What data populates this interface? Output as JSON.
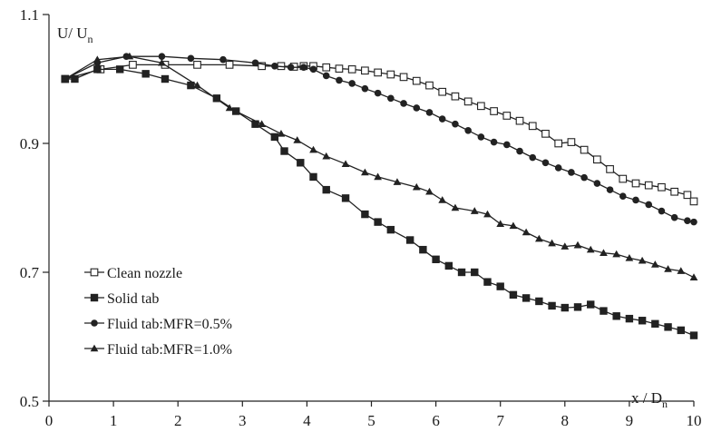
{
  "chart_data": {
    "type": "line",
    "xlim": [
      0,
      10
    ],
    "ylim": [
      0.5,
      1.1
    ],
    "x_ticks": [
      "0",
      "1",
      "2",
      "3",
      "4",
      "5",
      "6",
      "7",
      "8",
      "9",
      "10"
    ],
    "y_ticks": [
      "0.5",
      "0.7",
      "0.9",
      "1.1"
    ],
    "y_tick_values": [
      0.5,
      0.7,
      0.9,
      1.1
    ],
    "ylabel": {
      "main": "U/ U",
      "sub": "n"
    },
    "xlabel": {
      "main": "x / D",
      "sub": "n"
    },
    "grid": false,
    "legend_position": "lower-left",
    "series": [
      {
        "name": "Clean nozzle",
        "marker": "open-square",
        "color": "#222222",
        "x": [
          0.25,
          0.8,
          1.3,
          1.8,
          2.3,
          2.8,
          3.3,
          3.6,
          3.8,
          3.95,
          4.1,
          4.3,
          4.5,
          4.7,
          4.9,
          5.1,
          5.3,
          5.5,
          5.7,
          5.9,
          6.1,
          6.3,
          6.5,
          6.7,
          6.9,
          7.1,
          7.3,
          7.5,
          7.7,
          7.9,
          8.1,
          8.3,
          8.5,
          8.7,
          8.9,
          9.1,
          9.3,
          9.5,
          9.7,
          9.9,
          10.0
        ],
        "y": [
          1.0,
          1.015,
          1.022,
          1.022,
          1.022,
          1.022,
          1.02,
          1.02,
          1.019,
          1.02,
          1.02,
          1.018,
          1.016,
          1.015,
          1.013,
          1.01,
          1.007,
          1.003,
          0.997,
          0.99,
          0.98,
          0.973,
          0.965,
          0.958,
          0.95,
          0.943,
          0.935,
          0.927,
          0.915,
          0.9,
          0.902,
          0.89,
          0.875,
          0.86,
          0.845,
          0.838,
          0.835,
          0.832,
          0.825,
          0.82,
          0.81
        ]
      },
      {
        "name": "Solid tab",
        "marker": "filled-square",
        "color": "#222222",
        "x": [
          0.25,
          0.4,
          0.75,
          1.1,
          1.5,
          1.8,
          2.2,
          2.6,
          2.9,
          3.2,
          3.5,
          3.65,
          3.9,
          4.1,
          4.3,
          4.6,
          4.9,
          5.1,
          5.3,
          5.6,
          5.8,
          6.0,
          6.2,
          6.4,
          6.6,
          6.8,
          7.0,
          7.2,
          7.4,
          7.6,
          7.8,
          8.0,
          8.2,
          8.4,
          8.6,
          8.8,
          9.0,
          9.2,
          9.4,
          9.6,
          9.8,
          10.0
        ],
        "y": [
          1.0,
          1.0,
          1.015,
          1.015,
          1.008,
          1.0,
          0.99,
          0.97,
          0.95,
          0.93,
          0.91,
          0.888,
          0.87,
          0.848,
          0.828,
          0.815,
          0.79,
          0.778,
          0.766,
          0.75,
          0.735,
          0.72,
          0.71,
          0.7,
          0.7,
          0.685,
          0.678,
          0.665,
          0.66,
          0.655,
          0.648,
          0.645,
          0.646,
          0.65,
          0.64,
          0.632,
          0.628,
          0.625,
          0.62,
          0.615,
          0.61,
          0.602
        ]
      },
      {
        "name": "Fluid tab:MFR=0.5%",
        "marker": "filled-circle",
        "color": "#222222",
        "x": [
          0.25,
          0.75,
          1.2,
          1.75,
          2.2,
          2.7,
          3.2,
          3.5,
          3.75,
          3.95,
          4.1,
          4.3,
          4.5,
          4.7,
          4.9,
          5.1,
          5.3,
          5.5,
          5.7,
          5.9,
          6.1,
          6.3,
          6.5,
          6.7,
          6.9,
          7.1,
          7.3,
          7.5,
          7.7,
          7.9,
          8.1,
          8.3,
          8.5,
          8.7,
          8.9,
          9.1,
          9.3,
          9.5,
          9.7,
          9.9,
          10.0
        ],
        "y": [
          1.0,
          1.025,
          1.035,
          1.035,
          1.032,
          1.03,
          1.025,
          1.02,
          1.018,
          1.018,
          1.015,
          1.005,
          0.998,
          0.993,
          0.985,
          0.978,
          0.97,
          0.962,
          0.955,
          0.948,
          0.938,
          0.93,
          0.92,
          0.91,
          0.902,
          0.898,
          0.888,
          0.878,
          0.87,
          0.862,
          0.855,
          0.847,
          0.838,
          0.828,
          0.818,
          0.812,
          0.805,
          0.795,
          0.785,
          0.78,
          0.778
        ]
      },
      {
        "name": "Fluid tab:MFR=1.0%",
        "marker": "filled-triangle",
        "color": "#222222",
        "x": [
          0.25,
          0.75,
          1.25,
          1.75,
          2.3,
          2.8,
          3.3,
          3.6,
          3.85,
          4.1,
          4.3,
          4.6,
          4.9,
          5.1,
          5.4,
          5.7,
          5.9,
          6.1,
          6.3,
          6.6,
          6.8,
          7.0,
          7.2,
          7.4,
          7.6,
          7.8,
          8.0,
          8.2,
          8.4,
          8.6,
          8.8,
          9.0,
          9.2,
          9.4,
          9.6,
          9.8,
          10.0
        ],
        "y": [
          1.0,
          1.03,
          1.035,
          1.025,
          0.99,
          0.955,
          0.93,
          0.915,
          0.905,
          0.89,
          0.88,
          0.868,
          0.855,
          0.848,
          0.84,
          0.832,
          0.825,
          0.812,
          0.8,
          0.795,
          0.79,
          0.775,
          0.772,
          0.762,
          0.752,
          0.745,
          0.74,
          0.742,
          0.735,
          0.73,
          0.728,
          0.722,
          0.718,
          0.712,
          0.705,
          0.702,
          0.692
        ]
      }
    ]
  }
}
